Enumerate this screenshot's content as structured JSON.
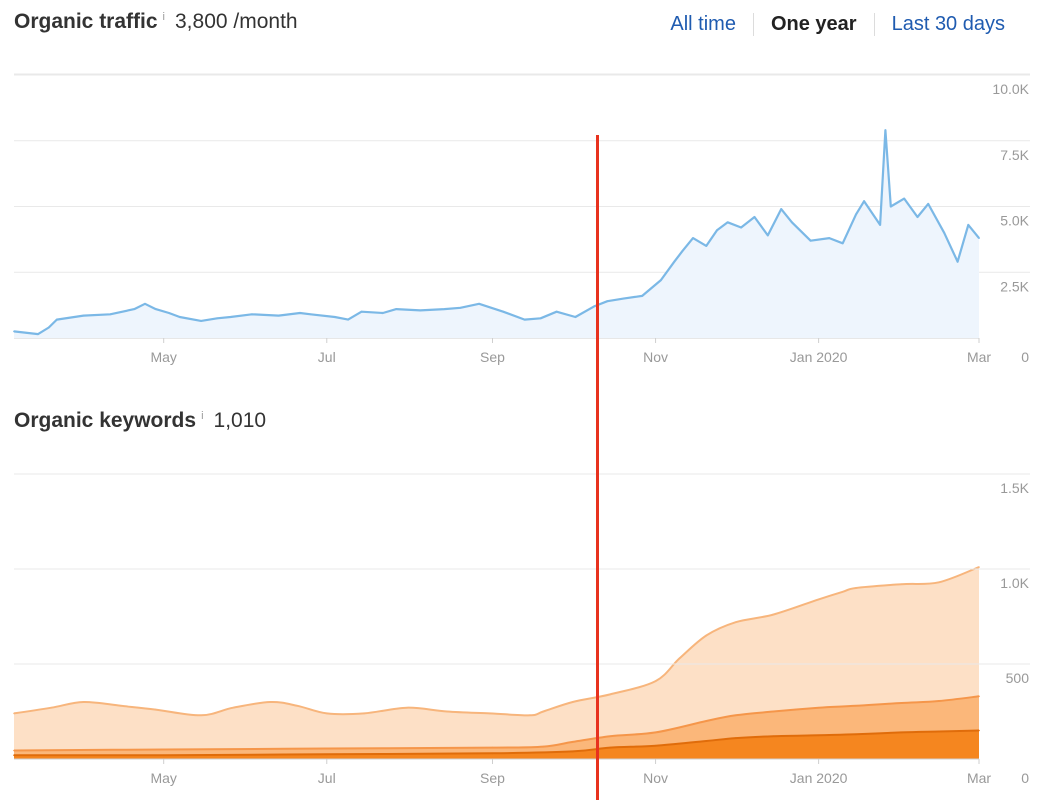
{
  "range_tabs": [
    {
      "label": "All time",
      "active": false
    },
    {
      "label": "One year",
      "active": true
    },
    {
      "label": "Last 30 days",
      "active": false
    }
  ],
  "info_glyph": "i",
  "colors": {
    "traffic_line": "#7bb8e6",
    "traffic_fill": "#eef5fd",
    "keywords_light": "#fde0c6",
    "keywords_light_line": "#f7b57c",
    "keywords_mid": "#fbb77a",
    "keywords_mid_line": "#f5964a",
    "keywords_dark": "#f5861f",
    "keywords_dark_line": "#e06c0a",
    "grid": "#e9e9e9",
    "marker": "#e8321e",
    "tab_link": "#1f5bb0"
  },
  "traffic": {
    "title": "Organic traffic",
    "value": "3,800 /month"
  },
  "keywords": {
    "title": "Organic keywords",
    "value": "1,010"
  },
  "chart_data": [
    {
      "type": "line",
      "title": "Organic traffic",
      "x_unit": "date",
      "x_tick_labels": [
        "May",
        "Jul",
        "Sep",
        "Nov",
        "Jan 2020",
        "Mar"
      ],
      "x_tick_dates": [
        "2019-05-01",
        "2019-07-01",
        "2019-09-01",
        "2019-11-01",
        "2020-01-01",
        "2020-03-01"
      ],
      "xlim": [
        "2019-03-06",
        "2020-03-01"
      ],
      "y_tick_labels": [
        "0",
        "2.5K",
        "5.0K",
        "7.5K",
        "10.0K"
      ],
      "y_tick_values": [
        0,
        2500,
        5000,
        7500,
        10000
      ],
      "ylim": [
        0,
        10000
      ],
      "grid": true,
      "area_fill": true,
      "series": [
        {
          "x": [
            "2019-03-06",
            "2019-03-15",
            "2019-03-19",
            "2019-03-22",
            "2019-04-01",
            "2019-04-11",
            "2019-04-20",
            "2019-04-24",
            "2019-04-28",
            "2019-05-03",
            "2019-05-07",
            "2019-05-15",
            "2019-05-21",
            "2019-05-26",
            "2019-06-03",
            "2019-06-13",
            "2019-06-21",
            "2019-06-25",
            "2019-07-04",
            "2019-07-09",
            "2019-07-14",
            "2019-07-22",
            "2019-07-27",
            "2019-08-05",
            "2019-08-14",
            "2019-08-20",
            "2019-08-27",
            "2019-09-05",
            "2019-09-13",
            "2019-09-19",
            "2019-09-25",
            "2019-10-02",
            "2019-10-09",
            "2019-10-14",
            "2019-10-20",
            "2019-10-27",
            "2019-11-03",
            "2019-11-08",
            "2019-11-11",
            "2019-11-15",
            "2019-11-20",
            "2019-11-24",
            "2019-11-28",
            "2019-12-03",
            "2019-12-08",
            "2019-12-13",
            "2019-12-18",
            "2019-12-22",
            "2019-12-29",
            "2020-01-05",
            "2020-01-10",
            "2020-01-15",
            "2020-01-18",
            "2020-01-24",
            "2020-01-26",
            "2020-01-28",
            "2020-02-02",
            "2020-02-07",
            "2020-02-11",
            "2020-02-17",
            "2020-02-22",
            "2020-02-26",
            "2020-03-01"
          ],
          "y": [
            250,
            150,
            400,
            700,
            850,
            900,
            1100,
            1300,
            1100,
            950,
            800,
            650,
            750,
            800,
            900,
            850,
            950,
            900,
            800,
            700,
            1000,
            950,
            1100,
            1050,
            1100,
            1150,
            1300,
            1000,
            700,
            750,
            1000,
            800,
            1200,
            1400,
            1500,
            1600,
            2200,
            2900,
            3300,
            3800,
            3500,
            4100,
            4400,
            4200,
            4600,
            3900,
            4900,
            4400,
            3700,
            3800,
            3600,
            4700,
            5200,
            4300,
            7900,
            5000,
            5300,
            4600,
            5100,
            4000,
            2900,
            4300,
            3800
          ]
        }
      ]
    },
    {
      "type": "area",
      "title": "Organic keywords",
      "x_unit": "date",
      "x_tick_labels": [
        "May",
        "Jul",
        "Sep",
        "Nov",
        "Jan 2020",
        "Mar"
      ],
      "x_tick_dates": [
        "2019-05-01",
        "2019-07-01",
        "2019-09-01",
        "2019-11-01",
        "2020-01-01",
        "2020-03-01"
      ],
      "xlim": [
        "2019-03-06",
        "2020-03-01"
      ],
      "y_tick_labels": [
        "0",
        "500",
        "1.0K",
        "1.5K"
      ],
      "y_tick_values": [
        0,
        500,
        1000,
        1500
      ],
      "ylim": [
        0,
        1500
      ],
      "grid": true,
      "stacked": false,
      "series": [
        {
          "x": [
            "2019-03-06",
            "2019-03-20",
            "2019-04-01",
            "2019-04-15",
            "2019-04-28",
            "2019-05-15",
            "2019-05-27",
            "2019-06-10",
            "2019-06-20",
            "2019-07-01",
            "2019-07-15",
            "2019-07-31",
            "2019-08-15",
            "2019-08-31",
            "2019-09-15",
            "2019-09-20",
            "2019-10-01",
            "2019-10-15",
            "2019-11-01",
            "2019-11-10",
            "2019-11-20",
            "2019-12-01",
            "2019-12-15",
            "2020-01-01",
            "2020-01-10",
            "2020-01-15",
            "2020-02-01",
            "2020-02-15",
            "2020-03-01"
          ],
          "y": [
            240,
            270,
            300,
            280,
            260,
            230,
            270,
            300,
            280,
            240,
            240,
            270,
            250,
            240,
            230,
            250,
            300,
            340,
            410,
            530,
            650,
            720,
            760,
            840,
            880,
            900,
            920,
            930,
            1010
          ]
        },
        {
          "x": [
            "2019-03-06",
            "2019-05-01",
            "2019-07-01",
            "2019-09-01",
            "2019-09-20",
            "2019-10-01",
            "2019-10-15",
            "2019-11-01",
            "2019-11-20",
            "2019-12-01",
            "2019-12-15",
            "2020-01-01",
            "2020-01-15",
            "2020-02-01",
            "2020-02-15",
            "2020-03-01"
          ],
          "y": [
            45,
            50,
            55,
            60,
            65,
            90,
            120,
            140,
            200,
            230,
            250,
            270,
            280,
            295,
            305,
            330
          ]
        },
        {
          "x": [
            "2019-03-06",
            "2019-05-01",
            "2019-07-01",
            "2019-09-01",
            "2019-10-01",
            "2019-10-15",
            "2019-11-01",
            "2019-11-20",
            "2019-12-01",
            "2019-12-15",
            "2020-01-01",
            "2020-01-15",
            "2020-02-01",
            "2020-02-15",
            "2020-03-01"
          ],
          "y": [
            20,
            20,
            25,
            30,
            40,
            60,
            70,
            95,
            110,
            120,
            125,
            130,
            140,
            145,
            150
          ]
        }
      ]
    }
  ]
}
